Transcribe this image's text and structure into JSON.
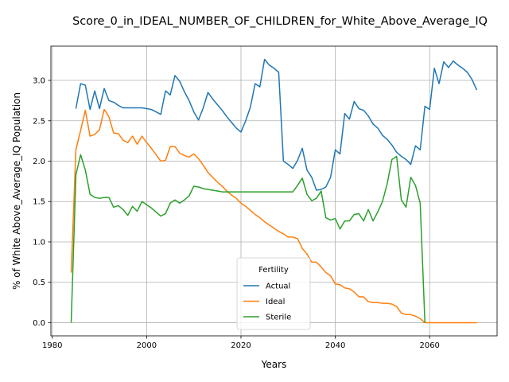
{
  "chart_data": {
    "type": "line",
    "title": "Score_0_in_IDEAL_NUMBER_OF_CHILDREN_for_White_Above_Average_IQ",
    "xlabel": "Years",
    "ylabel": "% of White Above_Average_IQ Population",
    "xlim": [
      1979.7,
      2074.3
    ],
    "ylim": [
      -0.163,
      3.424
    ],
    "xticks": [
      1980,
      2000,
      2020,
      2040,
      2060
    ],
    "yticks": [
      0.0,
      0.5,
      1.0,
      1.5,
      2.0,
      2.5,
      3.0
    ],
    "xtick_labels": [
      "1980",
      "2000",
      "2020",
      "2040",
      "2060"
    ],
    "ytick_labels": [
      "0.0",
      "0.5",
      "1.0",
      "1.5",
      "2.0",
      "2.5",
      "3.0"
    ],
    "grid": true,
    "legend": {
      "title": "Fertility",
      "placement": "lower-center"
    },
    "series": [
      {
        "name": "Actual",
        "color": "#1f77b4",
        "x": [
          1985,
          1986,
          1987,
          1988,
          1989,
          1990,
          1991,
          1992,
          1993,
          1994,
          1995,
          1996,
          1997,
          1998,
          1999,
          2000,
          2001,
          2002,
          2003,
          2004,
          2005,
          2006,
          2007,
          2008,
          2009,
          2010,
          2011,
          2012,
          2013,
          2014,
          2015,
          2016,
          2017,
          2018,
          2019,
          2020,
          2021,
          2022,
          2023,
          2024,
          2025,
          2026,
          2027,
          2028,
          2029,
          2030,
          2031,
          2032,
          2033,
          2034,
          2035,
          2036,
          2037,
          2038,
          2039,
          2040,
          2041,
          2042,
          2043,
          2044,
          2045,
          2046,
          2047,
          2048,
          2049,
          2050,
          2051,
          2052,
          2053,
          2054,
          2055,
          2056,
          2057,
          2058,
          2059,
          2060,
          2061,
          2062,
          2063,
          2064,
          2065,
          2066,
          2067,
          2068,
          2069,
          2070
        ],
        "values": [
          2.65,
          2.96,
          2.94,
          2.64,
          2.87,
          2.65,
          2.9,
          2.75,
          2.73,
          2.69,
          2.66,
          2.66,
          2.66,
          2.66,
          2.66,
          2.65,
          2.64,
          2.61,
          2.58,
          2.87,
          2.82,
          3.06,
          2.99,
          2.86,
          2.75,
          2.61,
          2.51,
          2.66,
          2.85,
          2.77,
          2.7,
          2.63,
          2.55,
          2.48,
          2.41,
          2.36,
          2.5,
          2.67,
          2.96,
          2.92,
          3.26,
          3.19,
          3.15,
          3.1,
          2.0,
          1.96,
          1.91,
          2.01,
          2.16,
          1.89,
          1.8,
          1.64,
          1.65,
          1.68,
          1.8,
          2.14,
          2.09,
          2.59,
          2.52,
          2.74,
          2.65,
          2.63,
          2.56,
          2.46,
          2.41,
          2.32,
          2.27,
          2.2,
          2.11,
          2.06,
          2.02,
          1.96,
          2.19,
          2.14,
          2.68,
          2.64,
          3.15,
          2.96,
          3.23,
          3.16,
          3.24,
          3.19,
          3.15,
          3.1,
          3.01,
          2.88
        ]
      },
      {
        "name": "Ideal",
        "color": "#ff7f0e",
        "x": [
          1984,
          1985,
          1986,
          1987,
          1988,
          1989,
          1990,
          1991,
          1992,
          1993,
          1994,
          1995,
          1996,
          1997,
          1998,
          1999,
          2000,
          2001,
          2002,
          2003,
          2004,
          2005,
          2006,
          2007,
          2008,
          2009,
          2010,
          2011,
          2012,
          2013,
          2014,
          2015,
          2016,
          2017,
          2018,
          2019,
          2020,
          2021,
          2022,
          2023,
          2024,
          2025,
          2026,
          2027,
          2028,
          2029,
          2030,
          2031,
          2032,
          2033,
          2034,
          2035,
          2036,
          2037,
          2038,
          2039,
          2040,
          2041,
          2042,
          2043,
          2044,
          2045,
          2046,
          2047,
          2048,
          2049,
          2050,
          2051,
          2052,
          2053,
          2054,
          2055,
          2056,
          2057,
          2058,
          2059,
          2060,
          2061,
          2062,
          2063,
          2064,
          2065,
          2066,
          2067,
          2068,
          2069,
          2070
        ],
        "values": [
          0.62,
          2.14,
          2.38,
          2.63,
          2.31,
          2.33,
          2.39,
          2.64,
          2.55,
          2.35,
          2.34,
          2.26,
          2.23,
          2.31,
          2.21,
          2.31,
          2.23,
          2.16,
          2.08,
          2.0,
          2.01,
          2.18,
          2.18,
          2.1,
          2.07,
          2.05,
          2.09,
          2.03,
          1.95,
          1.86,
          1.8,
          1.74,
          1.69,
          1.63,
          1.58,
          1.54,
          1.48,
          1.44,
          1.39,
          1.34,
          1.3,
          1.25,
          1.21,
          1.17,
          1.13,
          1.1,
          1.06,
          1.06,
          1.04,
          0.92,
          0.85,
          0.75,
          0.75,
          0.69,
          0.62,
          0.58,
          0.48,
          0.47,
          0.43,
          0.42,
          0.38,
          0.32,
          0.32,
          0.26,
          0.25,
          0.25,
          0.24,
          0.24,
          0.23,
          0.2,
          0.12,
          0.1,
          0.1,
          0.08,
          0.05,
          0.0,
          0.0,
          0.0,
          0.0,
          0.0,
          0.0,
          0.0,
          0.0,
          0.0,
          0.0,
          0.0,
          0.0
        ]
      },
      {
        "name": "Sterile",
        "color": "#2ca02c",
        "x": [
          1984,
          1985,
          1986,
          1987,
          1988,
          1989,
          1990,
          1991,
          1992,
          1993,
          1994,
          1995,
          1996,
          1997,
          1998,
          1999,
          2000,
          2001,
          2002,
          2003,
          2004,
          2005,
          2006,
          2007,
          2008,
          2009,
          2010,
          2011,
          2012,
          2013,
          2014,
          2015,
          2016,
          2017,
          2018,
          2019,
          2020,
          2021,
          2022,
          2023,
          2024,
          2025,
          2026,
          2027,
          2028,
          2029,
          2030,
          2031,
          2032,
          2033,
          2034,
          2035,
          2036,
          2037,
          2038,
          2039,
          2040,
          2041,
          2042,
          2043,
          2044,
          2045,
          2046,
          2047,
          2048,
          2049,
          2050,
          2051,
          2052,
          2053,
          2054,
          2055,
          2056,
          2057,
          2058,
          2059
        ],
        "values": [
          0.0,
          1.83,
          2.08,
          1.89,
          1.59,
          1.55,
          1.54,
          1.55,
          1.55,
          1.43,
          1.45,
          1.4,
          1.33,
          1.44,
          1.38,
          1.5,
          1.46,
          1.42,
          1.37,
          1.32,
          1.35,
          1.48,
          1.52,
          1.48,
          1.52,
          1.57,
          1.69,
          1.68,
          1.66,
          1.65,
          1.64,
          1.63,
          1.62,
          1.62,
          1.62,
          1.62,
          1.62,
          1.62,
          1.62,
          1.62,
          1.62,
          1.62,
          1.62,
          1.62,
          1.62,
          1.62,
          1.62,
          1.62,
          1.7,
          1.79,
          1.59,
          1.51,
          1.54,
          1.63,
          1.3,
          1.27,
          1.29,
          1.16,
          1.26,
          1.26,
          1.34,
          1.35,
          1.26,
          1.4,
          1.26,
          1.37,
          1.5,
          1.72,
          2.02,
          2.06,
          1.52,
          1.43,
          1.8,
          1.7,
          1.48,
          0.0
        ]
      }
    ]
  }
}
